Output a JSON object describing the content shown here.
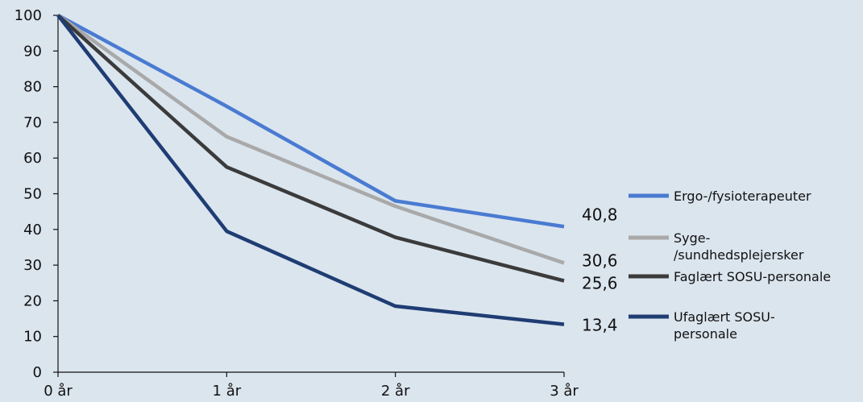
{
  "chart_data": {
    "type": "line",
    "x": [
      "0 år",
      "1 år",
      "2 år",
      "3 år"
    ],
    "ylim": [
      0,
      100
    ],
    "yticks": [
      "0",
      "10",
      "20",
      "30",
      "40",
      "50",
      "60",
      "70",
      "80",
      "90",
      "100"
    ],
    "grid": false,
    "legend_position": "right",
    "series": [
      {
        "name": "Ergo-/fysioterapeuter",
        "legend_lines": [
          "Ergo-/fysioterapeuter"
        ],
        "values": [
          100,
          74.5,
          48,
          40.8
        ],
        "end_label": "40,8",
        "color": "#4a7bd2"
      },
      {
        "name": "Syge-/sundhedsplejersker",
        "legend_lines": [
          "Syge-",
          "/sundhedsplejersker"
        ],
        "values": [
          100,
          66,
          46.5,
          30.6
        ],
        "end_label": "30,6",
        "color": "#a9a9a9"
      },
      {
        "name": "Faglært SOSU-personale",
        "legend_lines": [
          "Faglært SOSU-personale"
        ],
        "values": [
          100,
          57.5,
          37.8,
          25.6
        ],
        "end_label": "25,6",
        "color": "#3b3b3b"
      },
      {
        "name": "Ufaglært SOSU-personale",
        "legend_lines": [
          "Ufaglært SOSU-",
          "personale"
        ],
        "values": [
          100,
          39.5,
          18.5,
          13.4
        ],
        "end_label": "13,4",
        "color": "#1f3d73"
      }
    ]
  }
}
